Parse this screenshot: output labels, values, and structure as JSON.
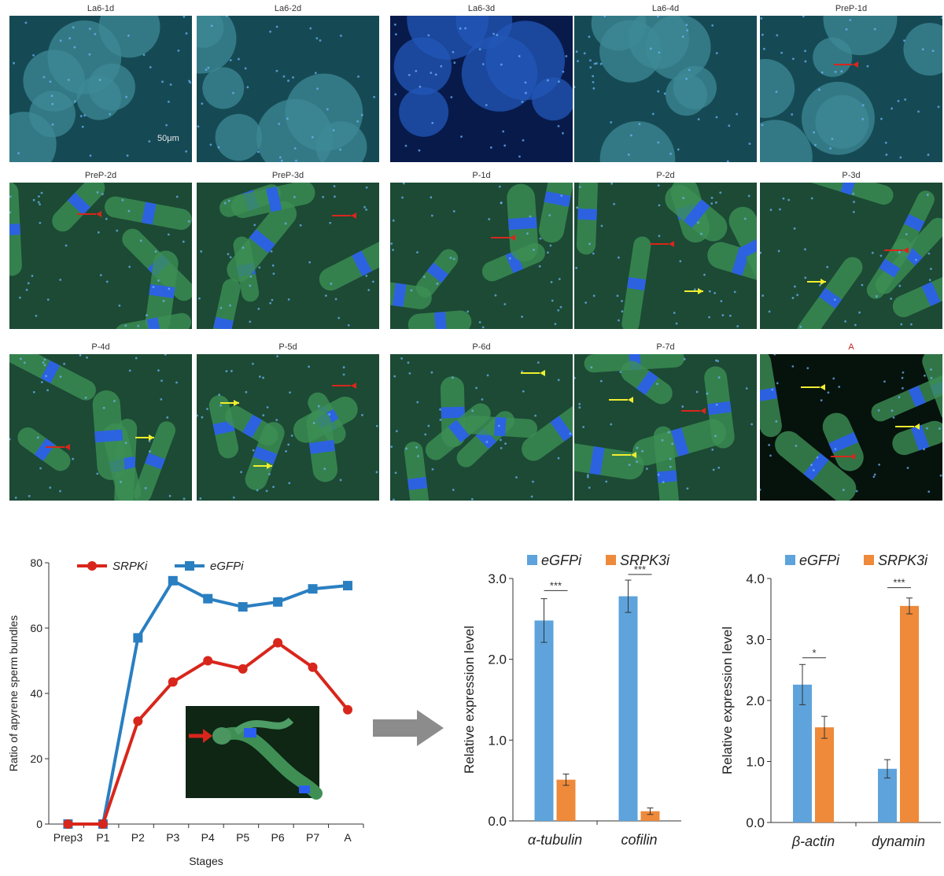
{
  "figure": {
    "micrograph_panels": [
      {
        "label": "La6-1d",
        "scalebar": "50μm",
        "label_color": "#333333"
      },
      {
        "label": "La6-2d",
        "label_color": "#333333"
      },
      {
        "label": "La6-3d",
        "label_color": "#333333"
      },
      {
        "label": "La6-4d",
        "label_color": "#333333"
      },
      {
        "label": "PreP-1d",
        "label_color": "#333333"
      },
      {
        "label": "PreP-2d",
        "label_color": "#333333"
      },
      {
        "label": "PreP-3d",
        "label_color": "#333333"
      },
      {
        "label": "P-1d",
        "label_color": "#333333"
      },
      {
        "label": "P-2d",
        "label_color": "#333333"
      },
      {
        "label": "P-3d",
        "label_color": "#333333"
      },
      {
        "label": "P-4d",
        "label_color": "#333333"
      },
      {
        "label": "P-5d",
        "label_color": "#333333"
      },
      {
        "label": "P-6d",
        "label_color": "#333333"
      },
      {
        "label": "P-7d",
        "label_color": "#333333"
      },
      {
        "label": "A",
        "label_color": "#c0201a"
      }
    ],
    "arrow_colors": {
      "red": "#d8261c",
      "yellow": "#f0ee30"
    },
    "flow_arrow_color": "#8c8c8c"
  },
  "chart_data": [
    {
      "type": "line",
      "xlabel": "Stages",
      "ylabel": "Ratio of apyrene sperm bundles",
      "categories": [
        "Prep3",
        "P1",
        "P2",
        "P3",
        "P4",
        "P5",
        "P6",
        "P7",
        "A"
      ],
      "ylim": [
        0,
        80
      ],
      "yticks": [
        0,
        20,
        40,
        60,
        80
      ],
      "legend_position": "top-left",
      "series": [
        {
          "name": "SRPKi",
          "marker": "circle",
          "color": "#d8261c",
          "values": [
            0,
            0,
            31.5,
            43.5,
            50,
            47.5,
            55.5,
            48,
            35
          ]
        },
        {
          "name": "eGFPi",
          "marker": "square",
          "color": "#2a7fc1",
          "values": [
            0,
            0,
            57,
            74.5,
            69,
            66.5,
            68,
            72,
            73
          ]
        }
      ],
      "inset_image": true
    },
    {
      "type": "bar",
      "ylabel": "Relative expression level",
      "categories": [
        "α-tubulin",
        "cofilin"
      ],
      "ylim": [
        0,
        3
      ],
      "yticks": [
        "0.0",
        "1.0",
        "2.0",
        "3.0"
      ],
      "legend_position": "top",
      "series": [
        {
          "name": "eGFPi",
          "color": "#5ea3db",
          "values": [
            2.48,
            2.78
          ],
          "errors": [
            0.27,
            0.2
          ]
        },
        {
          "name": "SRPK3i",
          "color": "#ee8a3a",
          "values": [
            0.51,
            0.12
          ],
          "errors": [
            0.07,
            0.04
          ]
        }
      ],
      "significance": [
        {
          "category": 0,
          "label": "***",
          "y": 2.85
        },
        {
          "category": 1,
          "label": "***",
          "y": 3.05
        }
      ]
    },
    {
      "type": "bar",
      "ylabel": "Relative expression level",
      "categories": [
        "β-actin",
        "dynamin"
      ],
      "ylim": [
        0,
        4
      ],
      "yticks": [
        "0.0",
        "1.0",
        "2.0",
        "3.0",
        "4.0"
      ],
      "legend_position": "top",
      "series": [
        {
          "name": "eGFPi",
          "color": "#5ea3db",
          "values": [
            2.26,
            0.88
          ],
          "errors": [
            0.33,
            0.15
          ]
        },
        {
          "name": "SRPK3i",
          "color": "#ee8a3a",
          "values": [
            1.56,
            3.55
          ],
          "errors": [
            0.18,
            0.13
          ]
        }
      ],
      "significance": [
        {
          "category": 0,
          "label": "*",
          "y": 2.7
        },
        {
          "category": 1,
          "label": "***",
          "y": 3.85
        }
      ]
    }
  ]
}
